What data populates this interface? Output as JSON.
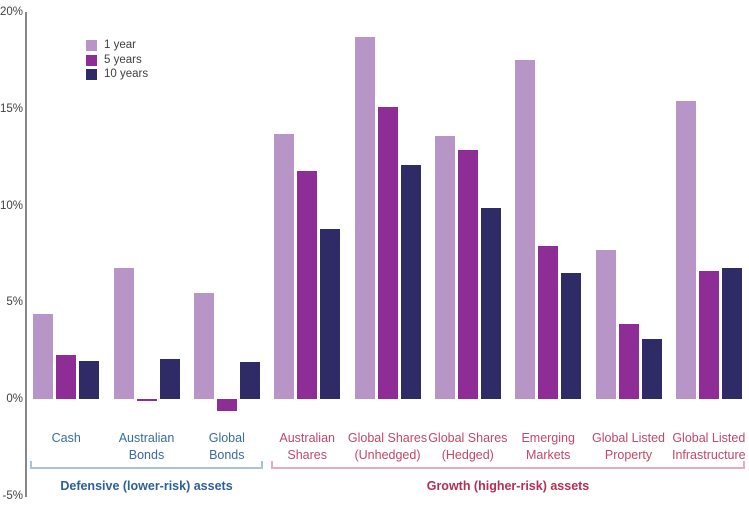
{
  "chart_data": {
    "type": "bar",
    "title": "",
    "categories": [
      "Cash",
      "Australian Bonds",
      "Global Bonds",
      "Australian Shares",
      "Global Shares (Unhedged)",
      "Global Shares (Hedged)",
      "Emerging Markets",
      "Global Listed Property",
      "Global Listed Infrastructure"
    ],
    "category_label_lines": [
      [
        "Cash"
      ],
      [
        "Australian",
        "Bonds"
      ],
      [
        "Global",
        "Bonds"
      ],
      [
        "Australian",
        "Shares"
      ],
      [
        "Global Shares",
        "(Unhedged)"
      ],
      [
        "Global Shares",
        "(Hedged)"
      ],
      [
        "Emerging",
        "Markets"
      ],
      [
        "Global Listed",
        "Property"
      ],
      [
        "Global Listed",
        "Infrastructure"
      ]
    ],
    "series": [
      {
        "name": "1 year",
        "color": "#b795c6",
        "values": [
          4.4,
          6.8,
          5.5,
          13.7,
          18.7,
          13.6,
          17.5,
          7.7,
          15.4
        ]
      },
      {
        "name": "5 years",
        "color": "#8e2d96",
        "values": [
          2.3,
          -0.1,
          -0.6,
          11.8,
          15.1,
          12.9,
          7.9,
          3.9,
          6.6
        ]
      },
      {
        "name": "10 years",
        "color": "#2e2b66",
        "values": [
          2.0,
          2.1,
          1.9,
          8.8,
          12.1,
          9.9,
          6.5,
          3.1,
          6.8
        ]
      }
    ],
    "y_ticks": [
      {
        "label": "20%",
        "value": 20
      },
      {
        "label": "15%",
        "value": 15
      },
      {
        "label": "10%",
        "value": 10
      },
      {
        "label": "5%",
        "value": 5
      },
      {
        "label": "0%",
        "value": 0
      },
      {
        "label": "-5%",
        "value": -5
      }
    ],
    "ylim": [
      -5,
      20
    ],
    "grid": false,
    "legend_position": "top-left",
    "asset_groups": [
      {
        "label": "Defensive (lower-risk) assets",
        "from": 0,
        "to": 2,
        "text_color": "#3a6aa1",
        "caption_color": "#2e5f95",
        "bracket_color": "#a9c4da"
      },
      {
        "label": "Growth (higher-risk) assets",
        "from": 3,
        "to": 8,
        "text_color": "#c2486a",
        "caption_color": "#b52e56",
        "bracket_color": "#e5aebe"
      }
    ]
  }
}
